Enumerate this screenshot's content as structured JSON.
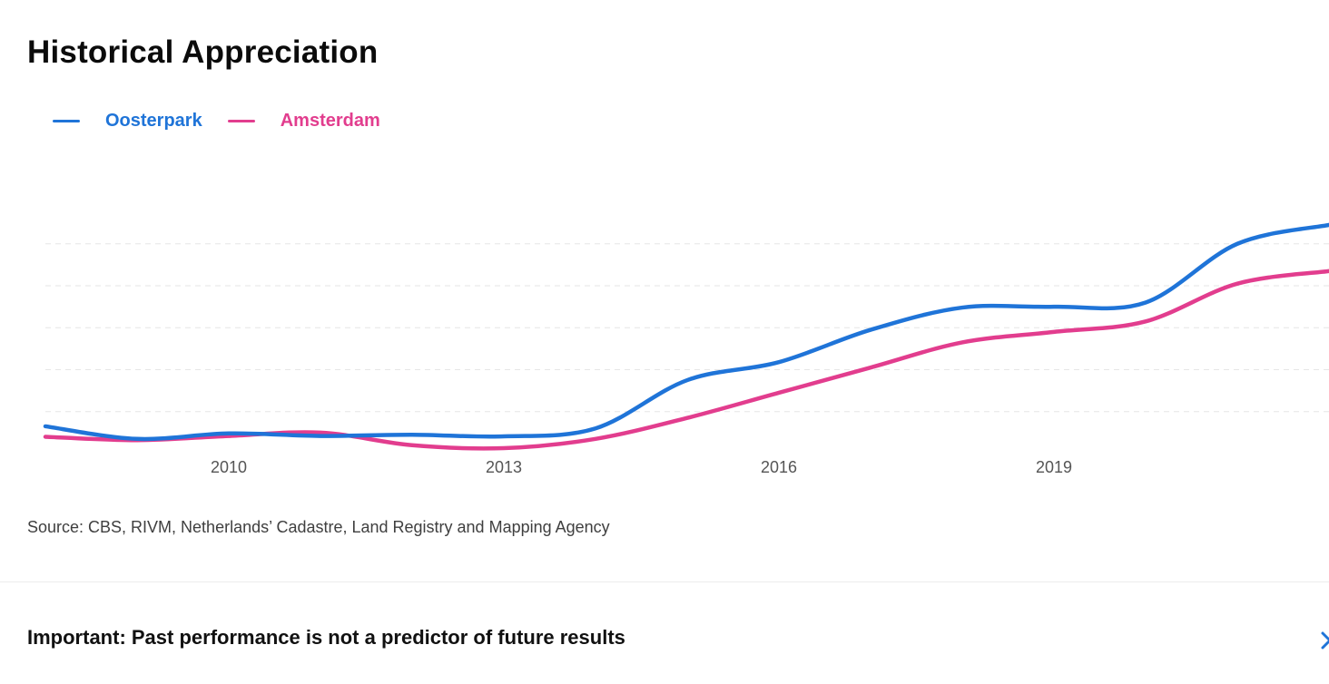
{
  "page": {
    "title": "Historical Appreciation",
    "source": "Source: CBS, RIVM, Netherlands’ Cadastre, Land Registry and Mapping Agency",
    "disclaimer": "Important: Past performance is not a predictor of future results"
  },
  "icons": {
    "chevron": "chevron-right-icon"
  },
  "colors": {
    "oosterpark": "#1f74d8",
    "amsterdam": "#e23d8e",
    "grid": "#e6e6e6",
    "tick": "#555555"
  },
  "chart_data": {
    "type": "line",
    "title": "Historical Appreciation",
    "xlabel": "",
    "ylabel": "",
    "grid": true,
    "legend_position": "top-left",
    "xlim": [
      2008,
      2022
    ],
    "ylim": [
      90,
      170
    ],
    "x": [
      2008,
      2009,
      2010,
      2011,
      2012,
      2013,
      2014,
      2015,
      2016,
      2017,
      2018,
      2019,
      2020,
      2021,
      2022
    ],
    "xticks": [
      2010,
      2013,
      2016,
      2019
    ],
    "xtick_labels": [
      "2010",
      "2013",
      "2016",
      "2019"
    ],
    "yticks": [
      100,
      110,
      120,
      130,
      140
    ],
    "series": [
      {
        "name": "Oosterpark",
        "color": "#1f74d8",
        "values": [
          96.5,
          93.5,
          94.8,
          94.2,
          94.5,
          94.1,
          96.0,
          107.5,
          111.8,
          119.5,
          124.8,
          125.0,
          126.0,
          140.0,
          144.5
        ]
      },
      {
        "name": "Amsterdam",
        "color": "#e23d8e",
        "values": [
          94.0,
          93.2,
          94.2,
          95.0,
          92.0,
          91.3,
          93.5,
          98.5,
          104.5,
          110.5,
          116.5,
          119.0,
          121.5,
          130.5,
          133.5
        ]
      }
    ]
  }
}
